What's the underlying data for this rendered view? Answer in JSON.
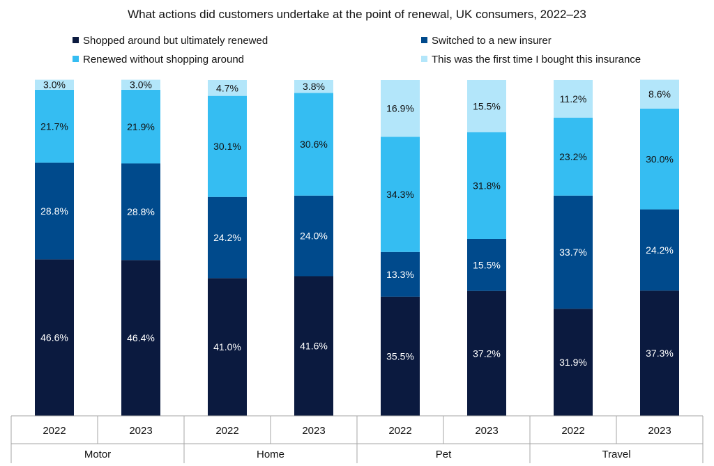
{
  "chart_data": {
    "type": "bar",
    "stacked": true,
    "title": "What actions did customers undertake at the point of renewal, UK consumers, 2022–23",
    "groups": [
      "Motor",
      "Home",
      "Pet",
      "Travel"
    ],
    "categories": [
      "2022",
      "2023",
      "2022",
      "2023",
      "2022",
      "2023",
      "2022",
      "2023"
    ],
    "series": [
      {
        "name": "Shopped around but ultimately renewed",
        "color": "#0b1a3f",
        "values": [
          46.6,
          46.4,
          41.0,
          41.6,
          35.5,
          37.2,
          31.9,
          37.3
        ],
        "labels": [
          "46.6%",
          "46.4%",
          "41.0%",
          "41.6%",
          "35.5%",
          "37.2%",
          "31.9%",
          "37.3%"
        ]
      },
      {
        "name": "Switched to a new insurer",
        "color": "#004a8c",
        "values": [
          28.8,
          28.8,
          24.2,
          24.0,
          13.3,
          15.5,
          33.7,
          24.2
        ],
        "labels": [
          "28.8%",
          "28.8%",
          "24.2%",
          "24.0%",
          "13.3%",
          "15.5%",
          "33.7%",
          "24.2%"
        ]
      },
      {
        "name": "Renewed without shopping around",
        "color": "#35bdf2",
        "values": [
          21.7,
          21.9,
          30.1,
          30.6,
          34.3,
          31.8,
          23.2,
          30.0
        ],
        "labels": [
          "21.7%",
          "21.9%",
          "30.1%",
          "30.6%",
          "34.3%",
          "31.8%",
          "23.2%",
          "30.0%"
        ]
      },
      {
        "name": "This was the first time I bought this insurance",
        "color": "#b3e6fa",
        "values": [
          3.0,
          3.0,
          4.7,
          3.8,
          16.9,
          15.5,
          11.2,
          8.6
        ],
        "labels": [
          "3.0%",
          "3.0%",
          "4.7%",
          "3.8%",
          "16.9%",
          "15.5%",
          "11.2%",
          "8.6%"
        ]
      }
    ],
    "ylim": [
      0,
      100
    ],
    "grid": false,
    "legend_position": "top"
  }
}
